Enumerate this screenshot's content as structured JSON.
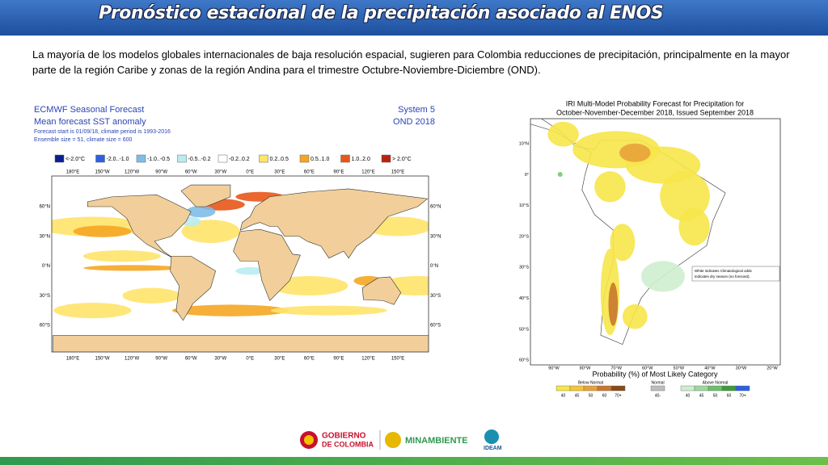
{
  "header": {
    "title": "Pronóstico estacional de la precipitación asociado al ENOS"
  },
  "body": {
    "text": "La mayoría de los modelos globales internacionales de baja resolución espacial, sugieren para Colombia reducciones de precipitación, principalmente en la mayor parte de la región Caribe y zonas de la región Andina para el trimestre Octubre-Noviembre-Diciembre (OND)."
  },
  "ecmwf": {
    "title_lines": [
      "ECMWF Seasonal Forecast",
      "Mean forecast SST anomaly"
    ],
    "info_lines": [
      "Forecast start is 01/09/18, climate period is 1993-2016",
      "Ensemble size = 51, climate size = 600"
    ],
    "system_lines": [
      "System 5",
      "OND 2018"
    ],
    "legend": [
      "<-2.0°C",
      "-2.0..-1.0",
      "-1.0..-0.5",
      "-0.5..-0.2",
      "-0.2..0.2",
      "0.2..0.5",
      "0.5..1.0",
      "1.0..2.0",
      "> 2.0°C"
    ],
    "lon_labels": [
      "180°E",
      "150°W",
      "120°W",
      "90°W",
      "60°W",
      "30°W",
      "0°E",
      "30°E",
      "60°E",
      "90°E",
      "120°E",
      "150°E"
    ],
    "lat_labels": [
      "60°N",
      "30°N",
      "0°N",
      "30°S",
      "60°S"
    ]
  },
  "iri": {
    "title_lines": [
      "IRI Multi-Model Probability Forecast for Precipitation for",
      "October-November-December 2018, Issued September 2018"
    ],
    "lat_labels": [
      "10°N",
      "0°",
      "10°S",
      "20°S",
      "30°S",
      "40°S",
      "50°S",
      "60°S"
    ],
    "lon_labels": [
      "90°W",
      "80°W",
      "70°W",
      "60°W",
      "50°W",
      "40°W",
      "30°W",
      "20°W"
    ],
    "note_lines": [
      "White indicates Climatological odds",
      "indicates dry season (no forecast)."
    ],
    "legend_title": "Probability (%) of Most Likely Category",
    "groups": [
      {
        "name": "Below Normal",
        "labels": [
          "40",
          "45",
          "50",
          "60",
          "70+"
        ]
      },
      {
        "name": "Normal",
        "labels": [
          "40-"
        ]
      },
      {
        "name": "Above Normal",
        "labels": [
          "40",
          "45",
          "50",
          "60",
          "70+"
        ]
      }
    ]
  },
  "footer": {
    "logos": [
      "GOBIERNO",
      "DE COLOMBIA",
      "MINAMBIENTE",
      "IDEAM"
    ]
  }
}
